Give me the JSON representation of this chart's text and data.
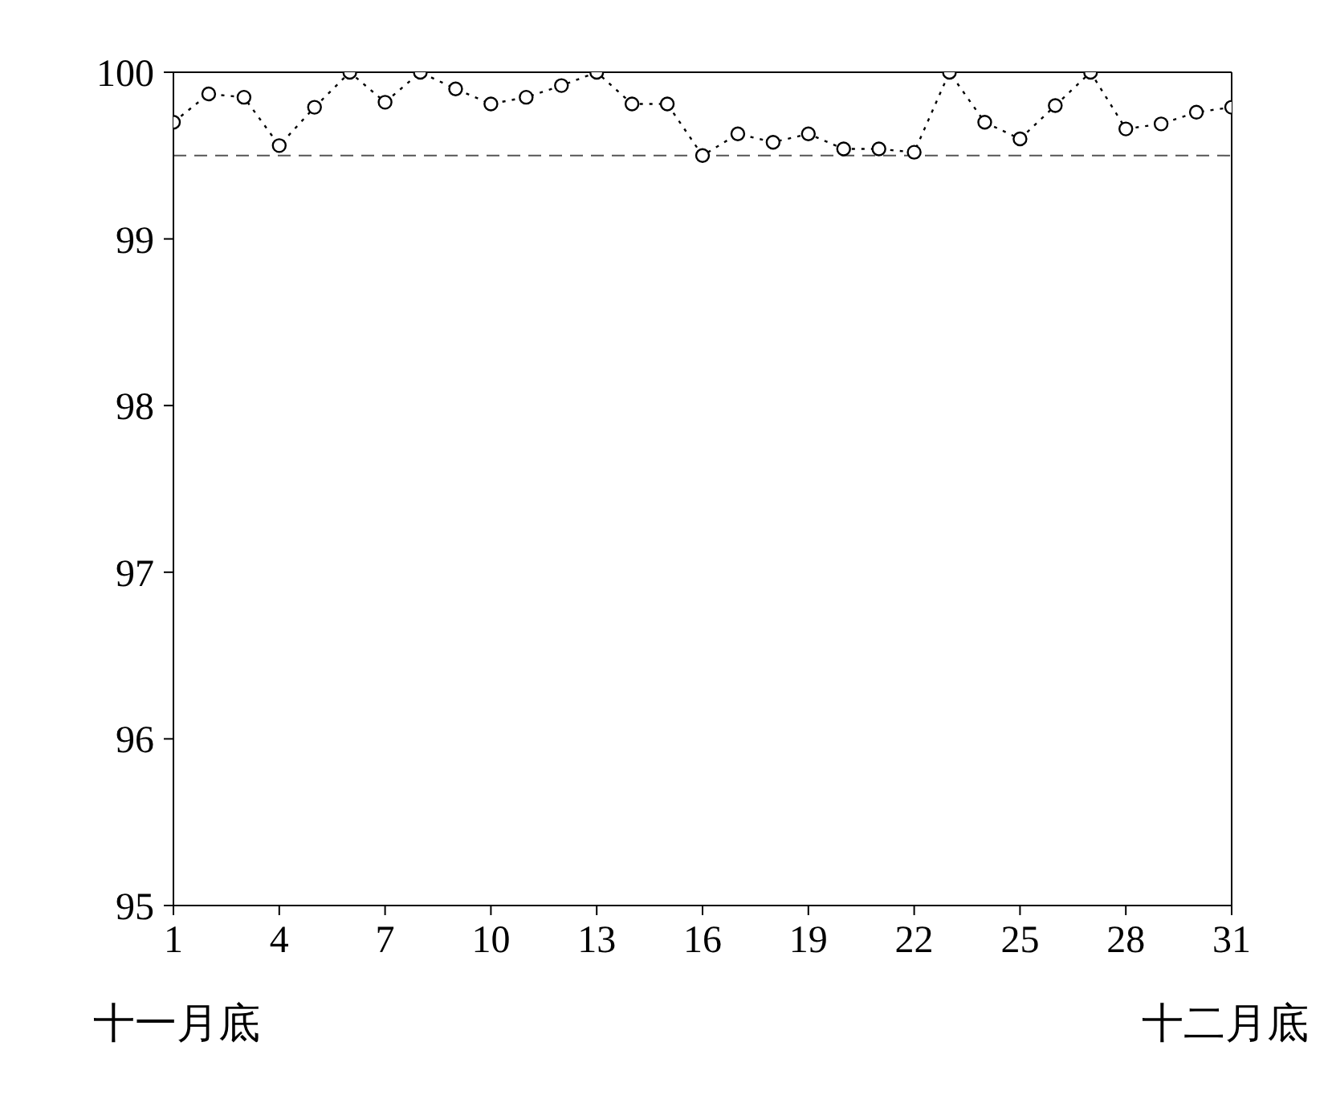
{
  "chart_data": {
    "type": "line",
    "x": [
      1,
      2,
      3,
      4,
      5,
      6,
      7,
      8,
      9,
      10,
      11,
      12,
      13,
      14,
      15,
      16,
      17,
      18,
      19,
      20,
      21,
      22,
      23,
      24,
      25,
      26,
      27,
      28,
      29,
      30,
      31
    ],
    "series": [
      {
        "color": "#000000",
        "values": [
          99.7,
          99.87,
          99.85,
          99.56,
          99.79,
          100,
          99.82,
          100,
          99.9,
          99.81,
          99.85,
          99.92,
          100,
          99.81,
          99.81,
          99.5,
          99.63,
          99.58,
          99.63,
          99.54,
          99.54,
          99.52,
          100,
          99.7,
          99.6,
          99.8,
          100,
          99.66,
          99.69,
          99.76,
          99.79
        ]
      }
    ],
    "xlim": [
      1,
      31
    ],
    "xticks": [
      1,
      4,
      7,
      10,
      13,
      16,
      19,
      22,
      25,
      28,
      31
    ],
    "ylim": [
      95,
      100
    ],
    "yticks": [
      95,
      96,
      97,
      98,
      99,
      100
    ],
    "marker": "circle",
    "line_style": "dotted",
    "grid": false,
    "legend": false,
    "ref_lines": [
      {
        "axis": "y",
        "value": 99.5,
        "line_style": "dashed",
        "color": "#555555"
      }
    ],
    "annotations": [
      "十一月底",
      "十二月底"
    ]
  }
}
